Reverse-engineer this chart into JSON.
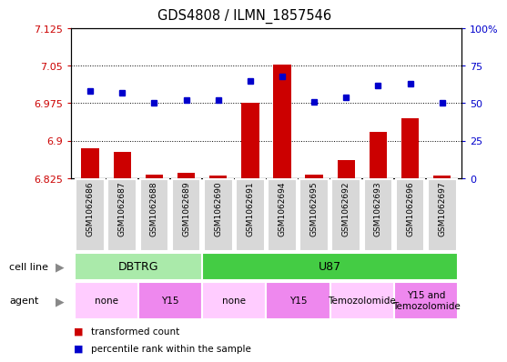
{
  "title": "GDS4808 / ILMN_1857546",
  "samples": [
    "GSM1062686",
    "GSM1062687",
    "GSM1062688",
    "GSM1062689",
    "GSM1062690",
    "GSM1062691",
    "GSM1062694",
    "GSM1062695",
    "GSM1062692",
    "GSM1062693",
    "GSM1062696",
    "GSM1062697"
  ],
  "transformed_count": [
    6.885,
    6.878,
    6.832,
    6.835,
    6.83,
    6.975,
    7.052,
    6.833,
    6.862,
    6.918,
    6.945,
    6.83
  ],
  "percentile_rank": [
    58,
    57,
    50,
    52,
    52,
    65,
    68,
    51,
    54,
    62,
    63,
    50
  ],
  "ylim_left": [
    6.825,
    7.125
  ],
  "ylim_right": [
    0,
    100
  ],
  "yticks_left": [
    6.825,
    6.9,
    6.975,
    7.05,
    7.125
  ],
  "yticks_right": [
    0,
    25,
    50,
    75,
    100
  ],
  "ytick_labels_left": [
    "6.825",
    "6.9",
    "6.975",
    "7.05",
    "7.125"
  ],
  "ytick_labels_right": [
    "0",
    "25",
    "50",
    "75",
    "100%"
  ],
  "hlines": [
    6.9,
    6.975,
    7.05
  ],
  "bar_color": "#cc0000",
  "dot_color": "#0000cc",
  "bar_bottom": 6.825,
  "cell_line_groups": [
    {
      "label": "DBTRG",
      "start": 0,
      "end": 3,
      "color": "#aaeaaa"
    },
    {
      "label": "U87",
      "start": 4,
      "end": 11,
      "color": "#44cc44"
    }
  ],
  "agent_groups": [
    {
      "label": "none",
      "start": 0,
      "end": 1,
      "color": "#ffccff"
    },
    {
      "label": "Y15",
      "start": 2,
      "end": 3,
      "color": "#ee88ee"
    },
    {
      "label": "none",
      "start": 4,
      "end": 5,
      "color": "#ffccff"
    },
    {
      "label": "Y15",
      "start": 6,
      "end": 7,
      "color": "#ee88ee"
    },
    {
      "label": "Temozolomide",
      "start": 8,
      "end": 9,
      "color": "#ffccff"
    },
    {
      "label": "Y15 and\nTemozolomide",
      "start": 10,
      "end": 11,
      "color": "#ee88ee"
    }
  ],
  "legend_items": [
    {
      "label": "transformed count",
      "color": "#cc0000"
    },
    {
      "label": "percentile rank within the sample",
      "color": "#0000cc"
    }
  ],
  "sample_bg_color": "#d8d8d8",
  "sample_border_color": "#ffffff"
}
